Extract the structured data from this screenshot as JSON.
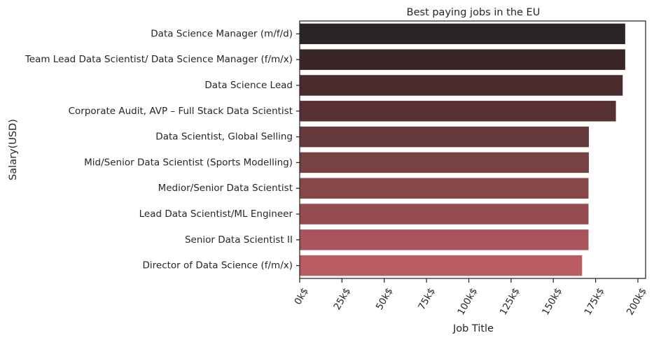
{
  "chart_data": {
    "type": "bar",
    "orientation": "horizontal",
    "title": "Best paying jobs in the EU",
    "xlabel": "Job Title",
    "ylabel": "Salary(USD)",
    "xlim": [
      0,
      200000
    ],
    "xticks": [
      0,
      25000,
      50000,
      75000,
      100000,
      125000,
      150000,
      175000,
      200000
    ],
    "xtick_labels": [
      "0k$",
      "25k$",
      "50k$",
      "75k$",
      "100k$",
      "125k$",
      "150k$",
      "175k$",
      "200k$"
    ],
    "categories": [
      "Data Science Manager (m/f/d)",
      "Team Lead Data Scientist/ Data Science Manager (f/m/x)",
      "Data Science Lead",
      "Corporate Audit, AVP – Full Stack Data Scientist",
      "Data Scientist, Global Selling",
      "Mid/Senior Data Scientist (Sports Modelling)",
      "Medior/Senior Data Scientist",
      "Lead Data Scientist/ML Engineer",
      "Senior Data Scientist II",
      "Director of Data Science (f/m/x)"
    ],
    "values": [
      192500,
      192500,
      191000,
      187000,
      171000,
      171000,
      170800,
      170800,
      170800,
      167000
    ],
    "colors": [
      "#2b2424",
      "#3a2627",
      "#4a2a2c",
      "#582f33",
      "#663a3c",
      "#764243",
      "#864749",
      "#964c50",
      "#a8545a",
      "#b95c61"
    ],
    "grid": false
  }
}
